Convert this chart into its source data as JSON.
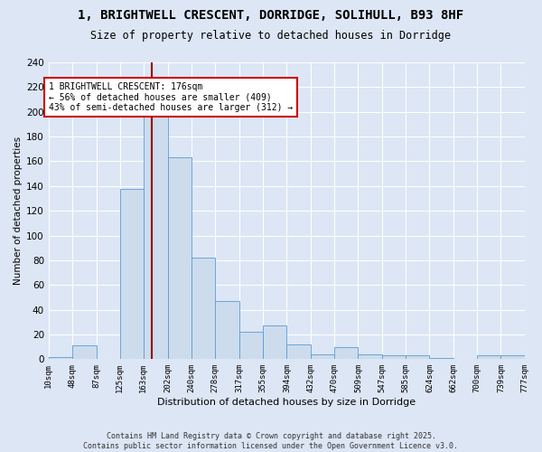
{
  "title_line1": "1, BRIGHTWELL CRESCENT, DORRIDGE, SOLIHULL, B93 8HF",
  "title_line2": "Size of property relative to detached houses in Dorridge",
  "xlabel": "Distribution of detached houses by size in Dorridge",
  "ylabel": "Number of detached properties",
  "bar_color": "#ccdcec",
  "bar_edge_color": "#5b9bd5",
  "bg_color": "#dce6f5",
  "grid_color": "#ffffff",
  "vline_x": 176,
  "vline_color": "#990000",
  "bar_data": [
    [
      10,
      48,
      2
    ],
    [
      48,
      87,
      11
    ],
    [
      87,
      125,
      0
    ],
    [
      125,
      163,
      138
    ],
    [
      163,
      202,
      198
    ],
    [
      202,
      240,
      163
    ],
    [
      240,
      278,
      82
    ],
    [
      278,
      317,
      47
    ],
    [
      317,
      355,
      22
    ],
    [
      355,
      394,
      27
    ],
    [
      394,
      432,
      12
    ],
    [
      432,
      470,
      4
    ],
    [
      470,
      509,
      10
    ],
    [
      509,
      547,
      4
    ],
    [
      547,
      585,
      3
    ],
    [
      585,
      624,
      3
    ],
    [
      624,
      662,
      1
    ],
    [
      662,
      700,
      0
    ],
    [
      700,
      739,
      3
    ],
    [
      739,
      777,
      3
    ]
  ],
  "annotation_text": "1 BRIGHTWELL CRESCENT: 176sqm\n← 56% of detached houses are smaller (409)\n43% of semi-detached houses are larger (312) →",
  "annotation_box_color": "#ffffff",
  "annotation_border_color": "#cc0000",
  "footer_text": "Contains HM Land Registry data © Crown copyright and database right 2025.\nContains public sector information licensed under the Open Government Licence v3.0.",
  "ylim": [
    0,
    240
  ],
  "yticks": [
    0,
    20,
    40,
    60,
    80,
    100,
    120,
    140,
    160,
    180,
    200,
    220,
    240
  ],
  "tick_labels": [
    "10sqm",
    "48sqm",
    "87sqm",
    "125sqm",
    "163sqm",
    "202sqm",
    "240sqm",
    "278sqm",
    "317sqm",
    "355sqm",
    "394sqm",
    "432sqm",
    "470sqm",
    "509sqm",
    "547sqm",
    "585sqm",
    "624sqm",
    "662sqm",
    "700sqm",
    "739sqm",
    "777sqm"
  ]
}
